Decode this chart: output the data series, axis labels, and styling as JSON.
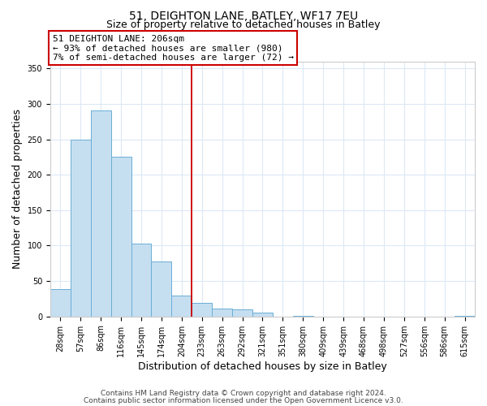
{
  "title": "51, DEIGHTON LANE, BATLEY, WF17 7EU",
  "subtitle": "Size of property relative to detached houses in Batley",
  "xlabel": "Distribution of detached houses by size in Batley",
  "ylabel": "Number of detached properties",
  "bar_labels": [
    "28sqm",
    "57sqm",
    "86sqm",
    "116sqm",
    "145sqm",
    "174sqm",
    "204sqm",
    "233sqm",
    "263sqm",
    "292sqm",
    "321sqm",
    "351sqm",
    "380sqm",
    "409sqm",
    "439sqm",
    "468sqm",
    "498sqm",
    "527sqm",
    "556sqm",
    "586sqm",
    "615sqm"
  ],
  "bar_values": [
    39,
    250,
    291,
    225,
    103,
    78,
    30,
    19,
    11,
    10,
    5,
    0,
    1,
    0,
    0,
    0,
    0,
    0,
    0,
    0,
    1
  ],
  "bar_color": "#c5dff0",
  "bar_edge_color": "#6aaed6",
  "vline_x_idx": 6,
  "vline_color": "#cc0000",
  "annotation_line1": "51 DEIGHTON LANE: 206sqm",
  "annotation_line2": "← 93% of detached houses are smaller (980)",
  "annotation_line3": "7% of semi-detached houses are larger (72) →",
  "annotation_box_color": "#ffffff",
  "annotation_box_edge": "#cc0000",
  "ylim": [
    0,
    360
  ],
  "yticks": [
    0,
    50,
    100,
    150,
    200,
    250,
    300,
    350
  ],
  "footnote1": "Contains HM Land Registry data © Crown copyright and database right 2024.",
  "footnote2": "Contains public sector information licensed under the Open Government Licence v3.0.",
  "bg_color": "#ffffff",
  "grid_color": "#dce9f5",
  "title_fontsize": 10,
  "subtitle_fontsize": 9,
  "axis_label_fontsize": 9,
  "tick_fontsize": 7,
  "annotation_fontsize": 8,
  "footnote_fontsize": 6.5
}
